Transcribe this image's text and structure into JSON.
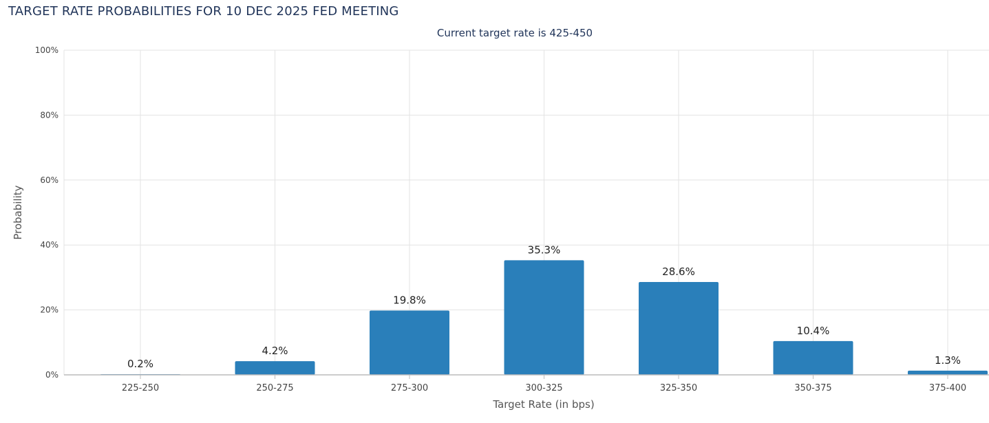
{
  "header": {
    "title": "TARGET RATE PROBABILITIES FOR 10 DEC 2025 FED MEETING"
  },
  "chart_data": {
    "type": "bar",
    "title": "TARGET RATE PROBABILITIES FOR 10 DEC 2025 FED MEETING",
    "subtitle": "Current target rate is 425-450",
    "xlabel": "Target Rate (in bps)",
    "ylabel": "Probability",
    "categories": [
      "225-250",
      "250-275",
      "275-300",
      "300-325",
      "325-350",
      "350-375",
      "375-400"
    ],
    "values": [
      0.2,
      4.2,
      19.8,
      35.3,
      28.6,
      10.4,
      1.3
    ],
    "data_labels": [
      "0.2%",
      "4.2%",
      "19.8%",
      "35.3%",
      "28.6%",
      "10.4%",
      "1.3%"
    ],
    "ylim": [
      0,
      100
    ],
    "yticks": [
      0,
      20,
      40,
      60,
      80,
      100
    ],
    "ytick_labels": [
      "0%",
      "20%",
      "40%",
      "60%",
      "80%",
      "100%"
    ],
    "grid": true,
    "legend": "none",
    "bar_color": "#2a7fba"
  }
}
